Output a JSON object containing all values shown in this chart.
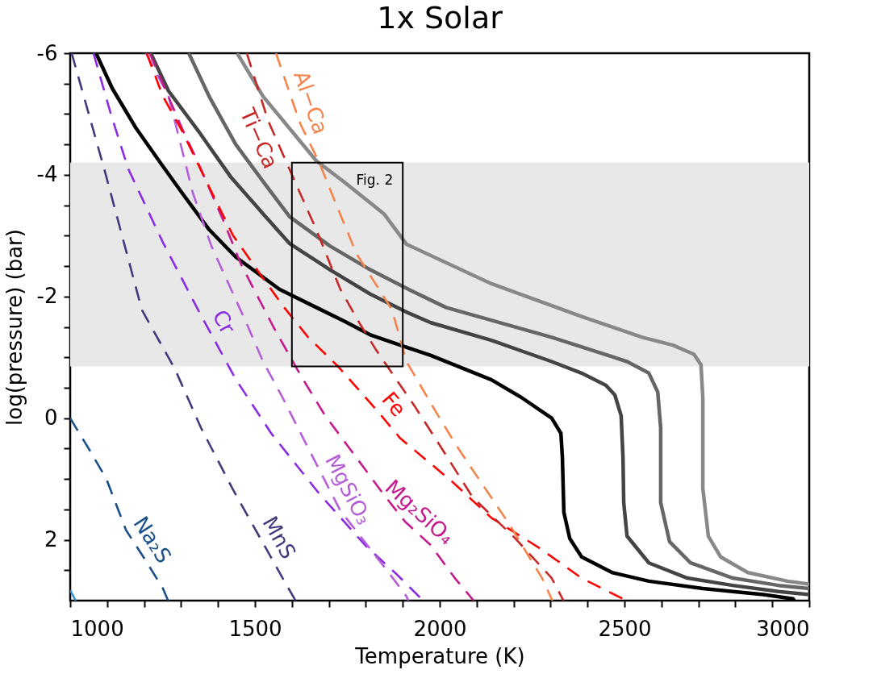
{
  "chart_data": {
    "type": "line",
    "title": "1x Solar",
    "xlabel": "Temperature (K)",
    "ylabel": "log(pressure) (bar)",
    "xlim": [
      1000,
      3000
    ],
    "xticks": [
      1000,
      {
        "value": 1100,
        "label": null
      },
      {
        "value": 1200,
        "label": null
      },
      {
        "value": 1300,
        "label": null
      },
      {
        "value": 1400,
        "label": null
      },
      1500,
      {
        "value": 1600,
        "label": null
      },
      {
        "value": 1700,
        "label": null
      },
      {
        "value": 1800,
        "label": null
      },
      {
        "value": 1900,
        "label": null
      },
      2000,
      {
        "value": 2100,
        "label": null
      },
      {
        "value": 2200,
        "label": null
      },
      {
        "value": 2300,
        "label": null
      },
      {
        "value": 2400,
        "label": null
      },
      2500,
      {
        "value": 2600,
        "label": null
      },
      {
        "value": 2700,
        "label": null
      },
      {
        "value": 2800,
        "label": null
      },
      {
        "value": 2900,
        "label": null
      },
      3000
    ],
    "ylim": [
      3,
      -6
    ],
    "yticks": [
      -6,
      {
        "value": -5.5,
        "label": null
      },
      {
        "value": -5,
        "label": null
      },
      {
        "value": -4.5,
        "label": null
      },
      -4,
      {
        "value": -3.5,
        "label": null
      },
      {
        "value": -3,
        "label": null
      },
      {
        "value": -2.5,
        "label": null
      },
      -2,
      {
        "value": -1.5,
        "label": null
      },
      {
        "value": -1,
        "label": null
      },
      {
        "value": -0.5,
        "label": null
      },
      0,
      {
        "value": 0.5,
        "label": null
      },
      {
        "value": 1,
        "label": null
      },
      {
        "value": 1.5,
        "label": null
      },
      2,
      {
        "value": 2.5,
        "label": null
      }
    ],
    "bands": [
      {
        "axis": "y",
        "from": -4.2,
        "to": -0.85,
        "color": "#e8e8e8"
      }
    ],
    "annotations": [
      {
        "text": "Fig. 2",
        "x": 1900,
        "y": -4.2
      }
    ],
    "series": [
      {
        "color": "#000000",
        "line_style": "solid",
        "x": [
          1070,
          1114,
          1179,
          1245,
          1303,
          1376,
          1448,
          1566,
          1666,
          1740,
          1812,
          1976,
          2140,
          2221,
          2303,
          2328,
          2332,
          2336,
          2352,
          2384,
          2467,
          2566,
          2712,
          2876,
          2956,
          2960
        ],
        "values": [
          -6,
          -5.42,
          -4.76,
          -4.19,
          -3.7,
          -3.1,
          -2.65,
          -2.12,
          -1.82,
          -1.6,
          -1.37,
          -1.03,
          -0.63,
          -0.34,
          0,
          0.25,
          0.65,
          1.55,
          1.98,
          2.28,
          2.54,
          2.68,
          2.8,
          2.9,
          2.97,
          3
        ]
      },
      {
        "color": "#444444",
        "line_style": "solid",
        "x": [
          1218,
          1266,
          1347,
          1434,
          1522,
          1594,
          1703,
          1812,
          1915,
          1976,
          2140,
          2303,
          2384,
          2450,
          2474,
          2491,
          2496,
          2498,
          2507,
          2566,
          2670,
          2793,
          2917,
          3000
        ],
        "values": [
          -6,
          -5.38,
          -4.72,
          -3.97,
          -3.36,
          -2.87,
          -2.44,
          -2.04,
          -1.73,
          -1.57,
          -1.28,
          -0.93,
          -0.74,
          -0.54,
          -0.38,
          -0.04,
          0.65,
          1.39,
          1.94,
          2.38,
          2.63,
          2.75,
          2.85,
          2.9
        ]
      },
      {
        "color": "#666666",
        "line_style": "solid",
        "x": [
          1321,
          1376,
          1448,
          1522,
          1594,
          1703,
          1812,
          1915,
          2017,
          2303,
          2507,
          2566,
          2590,
          2598,
          2598,
          2622,
          2679,
          2793,
          2917,
          3000
        ],
        "values": [
          -6,
          -5.29,
          -4.5,
          -3.89,
          -3.31,
          -2.83,
          -2.44,
          -2.12,
          -1.82,
          -1.33,
          -0.93,
          -0.74,
          -0.43,
          0.16,
          1.39,
          2.03,
          2.38,
          2.63,
          2.75,
          2.8
        ]
      },
      {
        "color": "#888888",
        "line_style": "solid",
        "x": [
          1452,
          1522,
          1594,
          1666,
          1740,
          1849,
          1910,
          2140,
          2384,
          2548,
          2631,
          2688,
          2707,
          2712,
          2712,
          2727,
          2760,
          2834,
          2941,
          3000
        ],
        "values": [
          -6,
          -5.29,
          -4.76,
          -4.23,
          -3.89,
          -3.36,
          -2.86,
          -2.21,
          -1.67,
          -1.33,
          -1.2,
          -1.05,
          -0.88,
          -0.34,
          1.15,
          1.94,
          2.28,
          2.54,
          2.68,
          2.73
        ]
      },
      {
        "name": "Na₂S",
        "color": "#1a4f8a",
        "line_style": "dashed",
        "x": [
          1000,
          1050,
          1098,
          1151,
          1200,
          1251,
          1265
        ],
        "values": [
          0,
          0.5,
          1,
          1.84,
          2.3,
          2.8,
          3
        ]
      },
      {
        "color": "#3b8fd4",
        "line_style": "dashed",
        "x": [
          1000,
          1015
        ],
        "values": [
          2.83,
          3
        ]
      },
      {
        "name": "MnS",
        "color": "#45387f",
        "line_style": "dashed",
        "x": [
          1004,
          1092,
          1194,
          1284,
          1354,
          1441,
          1587,
          1610
        ],
        "values": [
          -6,
          -4.1,
          -1.78,
          -0.8,
          0.16,
          1.18,
          2.76,
          3
        ]
      },
      {
        "name": "Cr",
        "color": "#8a2be2",
        "line_style": "dashed",
        "x": [
          1063,
          1110,
          1157,
          1250,
          1354,
          1448,
          1544,
          1675,
          1800,
          1884,
          1955
        ],
        "values": [
          -6,
          -5,
          -4.1,
          -2.9,
          -1.69,
          -0.64,
          0.25,
          1.25,
          2.1,
          2.57,
          3
        ]
      },
      {
        "name": "MgSiO₃",
        "color": "#b55ed8",
        "line_style": "dashed",
        "x": [
          1205,
          1266,
          1332,
          1382,
          1478,
          1522,
          1572,
          1638,
          1731,
          1862,
          1910,
          1915
        ],
        "values": [
          -6,
          -5.3,
          -3.7,
          -2.83,
          -1.55,
          -0.93,
          -0.37,
          0.42,
          1.52,
          2.54,
          2.93,
          3
        ]
      },
      {
        "name": "Mg₂SiO₄",
        "color": "#c41a8f",
        "line_style": "dashed",
        "x": [
          1215,
          1303,
          1347,
          1413,
          1463,
          1550,
          1622,
          1688,
          1849,
          1906,
          1976,
          2041,
          2092
        ],
        "values": [
          -6,
          -4.76,
          -4.19,
          -3.27,
          -2.52,
          -1.5,
          -0.72,
          -0.06,
          1.26,
          1.7,
          2.09,
          2.63,
          3
        ]
      },
      {
        "name": "Fe",
        "color": "#ff0000",
        "line_style": "dashed",
        "x": [
          1207,
          1251,
          1303,
          1376,
          1441,
          1522,
          1579,
          1644,
          1725,
          1834,
          1893,
          2033,
          2140,
          2271,
          2384,
          2505
        ],
        "values": [
          -6,
          -5.29,
          -4.72,
          -3.8,
          -3,
          -2.3,
          -1.82,
          -1.33,
          -0.85,
          -0.1,
          0.33,
          1.04,
          1.64,
          2.14,
          2.63,
          3
        ]
      },
      {
        "name": "Ti−Ca",
        "color": "#c62828",
        "line_style": "dashed",
        "x": [
          1478,
          1535,
          1622,
          1666,
          1731,
          1784,
          1827,
          1934,
          1991,
          2089,
          2205,
          2303,
          2335
        ],
        "values": [
          -6,
          -4.9,
          -3.7,
          -3.1,
          -2.12,
          -1.55,
          -1.13,
          -0.18,
          0.36,
          1.3,
          1.98,
          2.63,
          3
        ]
      },
      {
        "name": "Al−Ca",
        "color": "#f4844c",
        "line_style": "dashed",
        "x": [
          1557,
          1622,
          1675,
          1710,
          1775,
          1871,
          1910,
          1991,
          2041,
          2089,
          2188,
          2277,
          2305
        ],
        "values": [
          -6,
          -4.85,
          -4.19,
          -3.66,
          -2.7,
          -1.78,
          -0.93,
          -0.09,
          0.41,
          0.85,
          1.74,
          2.63,
          3
        ]
      }
    ]
  }
}
